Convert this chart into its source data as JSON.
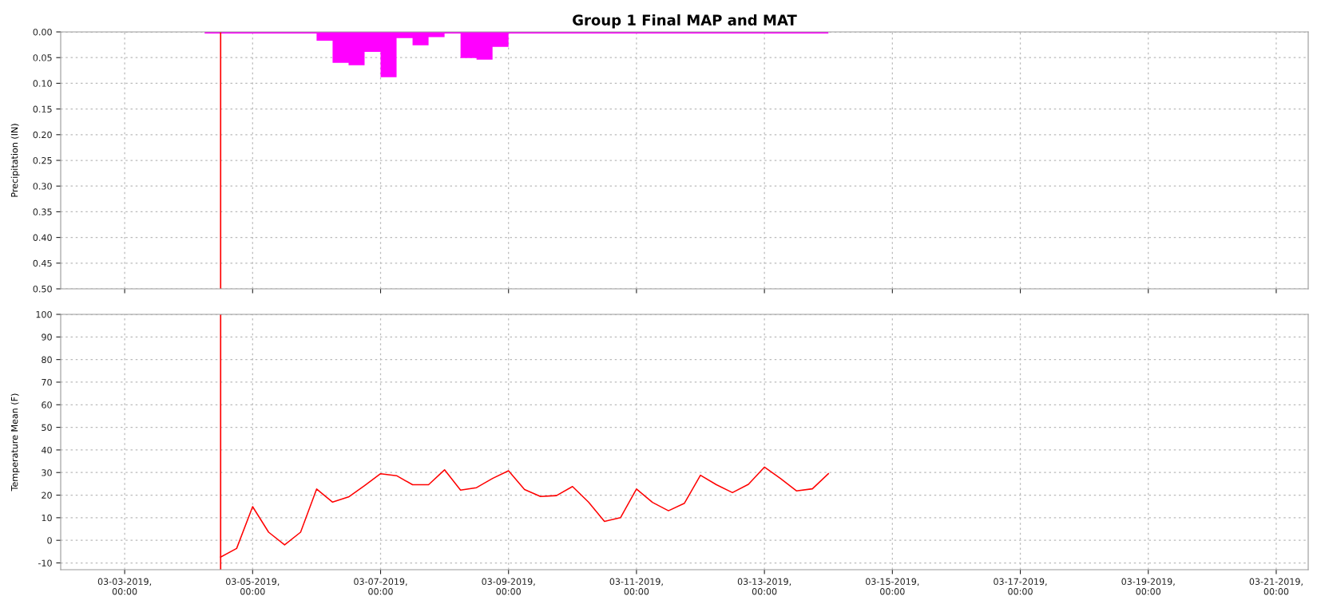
{
  "chart_data": [
    {
      "type": "area",
      "title": "Group 1 Final MAP and MAT",
      "ylabel": "Precipitation (IN)",
      "x": [
        "2019-03-04T06:00",
        "2019-03-04T12:00",
        "2019-03-04T18:00",
        "2019-03-05T00:00",
        "2019-03-05T06:00",
        "2019-03-05T12:00",
        "2019-03-05T18:00",
        "2019-03-06T00:00",
        "2019-03-06T06:00",
        "2019-03-06T12:00",
        "2019-03-06T18:00",
        "2019-03-07T00:00",
        "2019-03-07T06:00",
        "2019-03-07T12:00",
        "2019-03-07T18:00",
        "2019-03-08T00:00",
        "2019-03-08T06:00",
        "2019-03-08T12:00",
        "2019-03-08T18:00",
        "2019-03-09T00:00",
        "2019-03-09T06:00",
        "2019-03-09T12:00",
        "2019-03-09T18:00",
        "2019-03-10T00:00",
        "2019-03-10T06:00",
        "2019-03-10T12:00",
        "2019-03-10T18:00",
        "2019-03-11T00:00",
        "2019-03-11T06:00",
        "2019-03-11T12:00",
        "2019-03-11T18:00",
        "2019-03-12T00:00",
        "2019-03-12T06:00",
        "2019-03-12T12:00",
        "2019-03-12T18:00",
        "2019-03-13T00:00",
        "2019-03-13T06:00",
        "2019-03-13T12:00",
        "2019-03-13T18:00",
        "2019-03-14T00:00"
      ],
      "series": [
        {
          "color": "#ff00ff",
          "values": [
            0.003,
            0.003,
            0.003,
            0.003,
            0.003,
            0.003,
            0.003,
            0.017,
            0.06,
            0.065,
            0.039,
            0.088,
            0.012,
            0.026,
            0.01,
            0.003,
            0.051,
            0.054,
            0.029,
            0.003,
            0.003,
            0.003,
            0.003,
            0.003,
            0.003,
            0.003,
            0.003,
            0.003,
            0.003,
            0.003,
            0.003,
            0.003,
            0.003,
            0.003,
            0.003,
            0.003,
            0.003,
            0.003,
            0.003,
            0.003
          ]
        }
      ],
      "xlim": [
        "2019-03-02T00:00",
        "2019-03-21T12:00"
      ],
      "xticks": [
        {
          "value": "2019-03-03",
          "label": null
        },
        {
          "value": "2019-03-05",
          "label": null
        },
        {
          "value": "2019-03-07",
          "label": null
        },
        {
          "value": "2019-03-09",
          "label": null
        },
        {
          "value": "2019-03-11",
          "label": null
        },
        {
          "value": "2019-03-13",
          "label": null
        },
        {
          "value": "2019-03-15",
          "label": null
        },
        {
          "value": "2019-03-17",
          "label": null
        },
        {
          "value": "2019-03-19",
          "label": null
        },
        {
          "value": "2019-03-21",
          "label": null
        }
      ],
      "ylim": [
        0.5,
        0.0
      ],
      "yticks": [
        {
          "value": 0,
          "label": "0.00"
        },
        {
          "value": 0.05,
          "label": "0.05"
        },
        {
          "value": 0.1,
          "label": "0.10"
        },
        {
          "value": 0.15,
          "label": "0.15"
        },
        {
          "value": 0.2,
          "label": "0.20"
        },
        {
          "value": 0.25,
          "label": "0.25"
        },
        {
          "value": 0.3,
          "label": "0.30"
        },
        {
          "value": 0.35,
          "label": "0.35"
        },
        {
          "value": 0.4,
          "label": "0.40"
        },
        {
          "value": 0.45,
          "label": "0.45"
        },
        {
          "value": 0.5,
          "label": "0.50"
        }
      ],
      "tick_labels": "y",
      "grid": true,
      "legend": false,
      "ref_lines": [
        {
          "axis": "x",
          "value": "2019-03-04T12:00",
          "color": "#ff0000"
        }
      ]
    },
    {
      "type": "line",
      "ylabel": "Temperature Mean (F)",
      "marker": "none",
      "line_style": "solid",
      "x": [
        "2019-03-04T12:00",
        "2019-03-04T18:00",
        "2019-03-05T00:00",
        "2019-03-05T06:00",
        "2019-03-05T12:00",
        "2019-03-05T18:00",
        "2019-03-06T00:00",
        "2019-03-06T06:00",
        "2019-03-06T12:00",
        "2019-03-06T18:00",
        "2019-03-07T00:00",
        "2019-03-07T06:00",
        "2019-03-07T12:00",
        "2019-03-07T18:00",
        "2019-03-08T00:00",
        "2019-03-08T06:00",
        "2019-03-08T12:00",
        "2019-03-08T18:00",
        "2019-03-09T00:00",
        "2019-03-09T06:00",
        "2019-03-09T12:00",
        "2019-03-09T18:00",
        "2019-03-10T00:00",
        "2019-03-10T06:00",
        "2019-03-10T12:00",
        "2019-03-10T18:00",
        "2019-03-11T00:00",
        "2019-03-11T06:00",
        "2019-03-11T12:00",
        "2019-03-11T18:00",
        "2019-03-12T00:00",
        "2019-03-12T06:00",
        "2019-03-12T12:00",
        "2019-03-12T18:00",
        "2019-03-13T00:00",
        "2019-03-13T06:00",
        "2019-03-13T12:00",
        "2019-03-13T18:00",
        "2019-03-14T00:00"
      ],
      "series": [
        {
          "color": "#ff0000",
          "values": [
            -7.4,
            -3.6,
            14.9,
            3.6,
            -2.0,
            3.6,
            22.7,
            16.9,
            19.2,
            24.2,
            29.5,
            28.6,
            24.6,
            24.6,
            31.2,
            22.2,
            23.3,
            27.4,
            30.8,
            22.5,
            19.4,
            19.8,
            23.8,
            16.9,
            8.4,
            10.0,
            22.7,
            16.8,
            13.1,
            16.4,
            28.8,
            24.6,
            21.1,
            24.8,
            32.4,
            27.4,
            21.9,
            22.8,
            29.5
          ]
        }
      ],
      "xlim": [
        "2019-03-02T00:00",
        "2019-03-21T12:00"
      ],
      "xticks": [
        {
          "value": "2019-03-03",
          "label": "03-03-2019,\n00:00"
        },
        {
          "value": "2019-03-05",
          "label": "03-05-2019,\n00:00"
        },
        {
          "value": "2019-03-07",
          "label": "03-07-2019,\n00:00"
        },
        {
          "value": "2019-03-09",
          "label": "03-09-2019,\n00:00"
        },
        {
          "value": "2019-03-11",
          "label": "03-11-2019,\n00:00"
        },
        {
          "value": "2019-03-13",
          "label": "03-13-2019,\n00:00"
        },
        {
          "value": "2019-03-15",
          "label": "03-15-2019,\n00:00"
        },
        {
          "value": "2019-03-17",
          "label": "03-17-2019,\n00:00"
        },
        {
          "value": "2019-03-19",
          "label": "03-19-2019,\n00:00"
        },
        {
          "value": "2019-03-21",
          "label": "03-21-2019,\n00:00"
        }
      ],
      "ylim": [
        -13,
        100
      ],
      "yticks": [
        -10,
        0,
        10,
        20,
        30,
        40,
        50,
        60,
        70,
        80,
        90,
        100
      ],
      "grid": true,
      "legend": false,
      "ref_lines": [
        {
          "axis": "x",
          "value": "2019-03-04T12:00",
          "color": "#ff0000"
        }
      ]
    }
  ]
}
